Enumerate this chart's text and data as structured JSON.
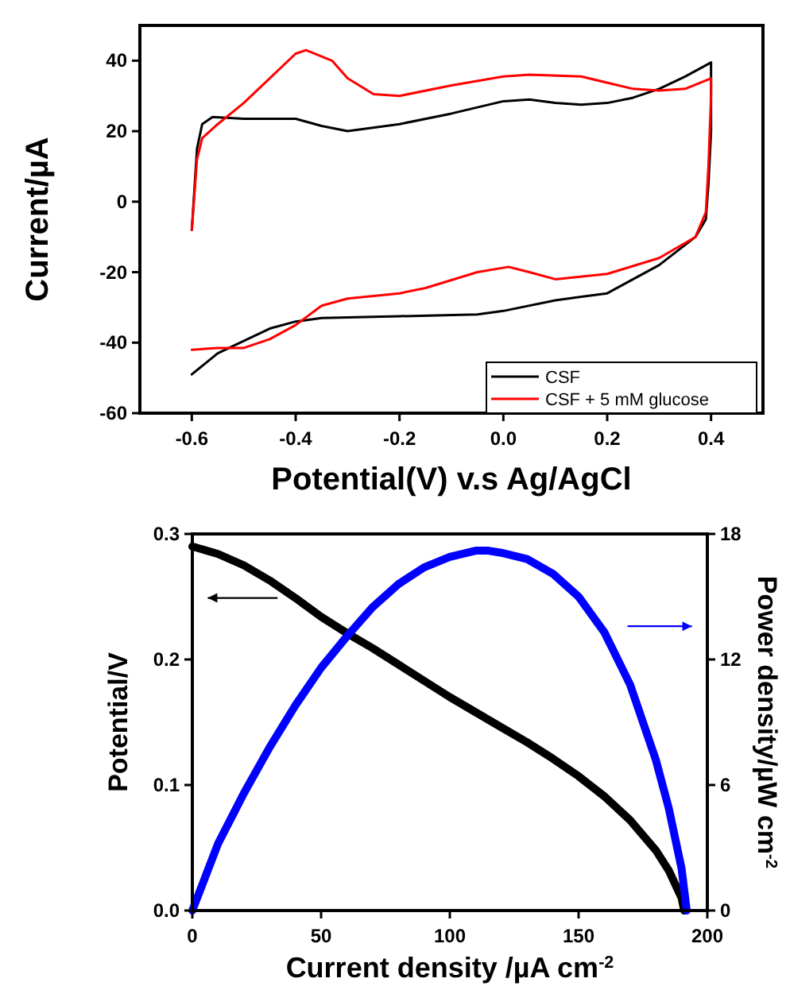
{
  "chart_data": [
    {
      "type": "line",
      "xlabel": "Potential(V) v.s Ag/AgCl",
      "ylabel": "Current/µA",
      "xlim": [
        -0.7,
        0.5
      ],
      "xticks": [
        {
          "value": -0.6,
          "label": "-0.6"
        },
        {
          "value": -0.4,
          "label": "-0.4"
        },
        {
          "value": -0.2,
          "label": "-0.2"
        },
        {
          "value": 0,
          "label": "0.0"
        },
        {
          "value": 0.2,
          "label": "0.2"
        },
        {
          "value": 0.4,
          "label": "0.4"
        }
      ],
      "ylim": [
        -60,
        50
      ],
      "yticks": [
        -60,
        -40,
        -20,
        0,
        20,
        40
      ],
      "legend": "bottom right",
      "grid": false,
      "series": [
        {
          "name": "CSF",
          "color": "#000000",
          "x": [
            -0.6,
            -0.59,
            -0.58,
            -0.56,
            -0.5,
            -0.45,
            -0.4,
            -0.35,
            -0.3,
            -0.2,
            -0.1,
            0,
            0.05,
            0.1,
            0.15,
            0.2,
            0.25,
            0.3,
            0.35,
            0.4,
            0.4,
            0.395,
            0.39,
            0.37,
            0.3,
            0.25,
            0.2,
            0.15,
            0.1,
            0,
            -0.05,
            -0.2,
            -0.35,
            -0.4,
            -0.45,
            -0.5,
            -0.55,
            -0.6
          ],
          "values": [
            -8,
            15,
            22,
            24,
            23.5,
            23.5,
            23.5,
            21.5,
            20,
            22,
            25,
            28.5,
            29,
            28,
            27.5,
            28,
            29.5,
            32,
            35.5,
            39.5,
            20,
            5,
            -5,
            -10,
            -18,
            -22,
            -26,
            -27,
            -28,
            -31,
            -32,
            -32.5,
            -33,
            -34,
            -36,
            -39.5,
            -43,
            -49
          ]
        },
        {
          "name": "CSF + 5 mM glucose",
          "color": "#ff0000",
          "x": [
            -0.6,
            -0.59,
            -0.58,
            -0.55,
            -0.5,
            -0.45,
            -0.4,
            -0.38,
            -0.33,
            -0.3,
            -0.25,
            -0.2,
            -0.1,
            0,
            0.05,
            0.15,
            0.25,
            0.3,
            0.35,
            0.4,
            0.4,
            0.395,
            0.39,
            0.37,
            0.3,
            0.2,
            0.1,
            0.05,
            0.01,
            -0.05,
            -0.15,
            -0.2,
            -0.3,
            -0.35,
            -0.4,
            -0.45,
            -0.5,
            -0.55,
            -0.6
          ],
          "values": [
            -8,
            12,
            18,
            22,
            28,
            35,
            42,
            43,
            40,
            35,
            30.5,
            30,
            33,
            35.5,
            36,
            35.5,
            32,
            31.5,
            32,
            35,
            30,
            10,
            -3,
            -10,
            -16,
            -20.5,
            -22,
            -20,
            -18.5,
            -20,
            -24.5,
            -26,
            -27.5,
            -29.5,
            -35,
            -39,
            -41.5,
            -41.5,
            -42
          ]
        }
      ]
    },
    {
      "type": "line",
      "xlabel": "Current density /µA cm$^{-2}$",
      "ylabel": "Potential/V",
      "y2label": "Power density/µW cm$^{-2}$",
      "xlim": [
        0,
        200
      ],
      "xticks": [
        0,
        50,
        100,
        150,
        200
      ],
      "ylim": [
        0,
        0.3
      ],
      "yticks": [
        {
          "value": 0,
          "label": "0.0"
        },
        0.1,
        0.2,
        0.3
      ],
      "y2lim": [
        0,
        18
      ],
      "y2ticks": [
        0,
        6,
        12,
        18
      ],
      "grid": false,
      "series": [
        {
          "color": "#000000",
          "x": [
            0,
            10,
            20,
            30,
            40,
            50,
            60,
            70,
            80,
            90,
            100,
            110,
            120,
            130,
            140,
            150,
            160,
            170,
            180,
            185,
            190,
            191
          ],
          "values": [
            0.29,
            0.284,
            0.275,
            0.263,
            0.249,
            0.234,
            0.221,
            0.209,
            0.196,
            0.183,
            0.17,
            0.158,
            0.146,
            0.134,
            0.121,
            0.107,
            0.091,
            0.072,
            0.048,
            0.032,
            0.01,
            0
          ]
        },
        {
          "color": "#0000ff",
          "axis": "y2",
          "x": [
            0,
            10,
            20,
            30,
            40,
            50,
            60,
            70,
            80,
            90,
            100,
            110,
            115,
            120,
            130,
            140,
            150,
            160,
            170,
            180,
            185,
            190,
            192
          ],
          "values": [
            0,
            3.2,
            5.6,
            7.8,
            9.8,
            11.6,
            13.1,
            14.5,
            15.6,
            16.4,
            16.9,
            17.2,
            17.2,
            17.1,
            16.8,
            16.1,
            15,
            13.3,
            10.8,
            7.2,
            4.9,
            2,
            0
          ]
        }
      ]
    }
  ]
}
